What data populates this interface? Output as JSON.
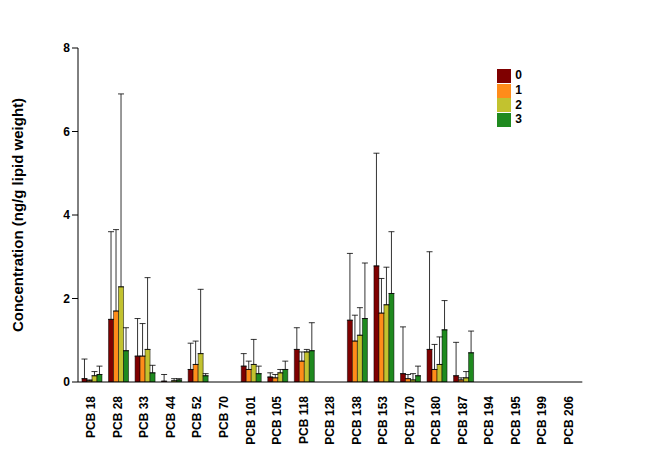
{
  "chart_data": {
    "type": "bar",
    "y_label": "Concentration (ng/g lipid weight)",
    "categories": [
      "PCB 18",
      "PCB 28",
      "PCB 33",
      "PCB 44",
      "PCB 52",
      "PCB 70",
      "PCB 101",
      "PCB 105",
      "PCB 118",
      "PCB 128",
      "PCB 138",
      "PCB 153",
      "PCB 170",
      "PCB 180",
      "PCB 187",
      "PCB 194",
      "PCB 195",
      "PCB 199",
      "PCB 206"
    ],
    "series": [
      {
        "name": "0",
        "color": "#7f0000",
        "values": [
          0.08,
          1.5,
          0.62,
          0.02,
          0.3,
          0,
          0.38,
          0.12,
          0.78,
          0,
          1.48,
          2.78,
          0.2,
          0.78,
          0.15,
          0,
          0,
          0,
          0
        ],
        "errors": [
          0.47,
          2.1,
          0.9,
          0.16,
          0.63,
          0,
          0.3,
          0.1,
          0.52,
          0,
          1.6,
          2.7,
          1.12,
          2.34,
          0.8,
          0,
          0,
          0,
          0
        ]
      },
      {
        "name": "1",
        "color": "#ff8c1a",
        "values": [
          0.03,
          1.7,
          0.62,
          0,
          0.42,
          0,
          0.3,
          0.1,
          0.5,
          0,
          0.98,
          1.65,
          0.08,
          0.3,
          0.05,
          0,
          0,
          0,
          0
        ],
        "errors": [
          0.02,
          1.95,
          0.78,
          0,
          0.56,
          0,
          0.2,
          0.08,
          0.22,
          0,
          0.62,
          0.83,
          0.1,
          0.6,
          0.05,
          0,
          0,
          0,
          0
        ]
      },
      {
        "name": "2",
        "color": "#c2c22f",
        "values": [
          0.15,
          2.28,
          0.78,
          0.03,
          0.68,
          0,
          0.42,
          0.22,
          0.72,
          0,
          1.12,
          1.85,
          0.05,
          0.42,
          0.1,
          0,
          0,
          0,
          0
        ],
        "errors": [
          0.1,
          4.62,
          1.72,
          0.05,
          1.54,
          0,
          0.6,
          0.08,
          0.06,
          0,
          0.66,
          0.9,
          0.15,
          0.66,
          0.15,
          0,
          0,
          0,
          0
        ]
      },
      {
        "name": "3",
        "color": "#1f8a1f",
        "values": [
          0.18,
          0.75,
          0.22,
          0.05,
          0.15,
          0,
          0.2,
          0.3,
          0.75,
          0,
          1.52,
          2.12,
          0.15,
          1.25,
          0.7,
          0,
          0,
          0,
          0
        ],
        "errors": [
          0.2,
          0.55,
          0.18,
          0.03,
          0.05,
          0,
          0.18,
          0.2,
          0.67,
          0,
          1.33,
          1.48,
          0.23,
          0.7,
          0.52,
          0,
          0,
          0,
          0
        ]
      }
    ],
    "ylim": [
      0,
      8
    ],
    "yticks": [
      0,
      2,
      4,
      6,
      8
    ],
    "grid": false,
    "legend": "upper right"
  }
}
